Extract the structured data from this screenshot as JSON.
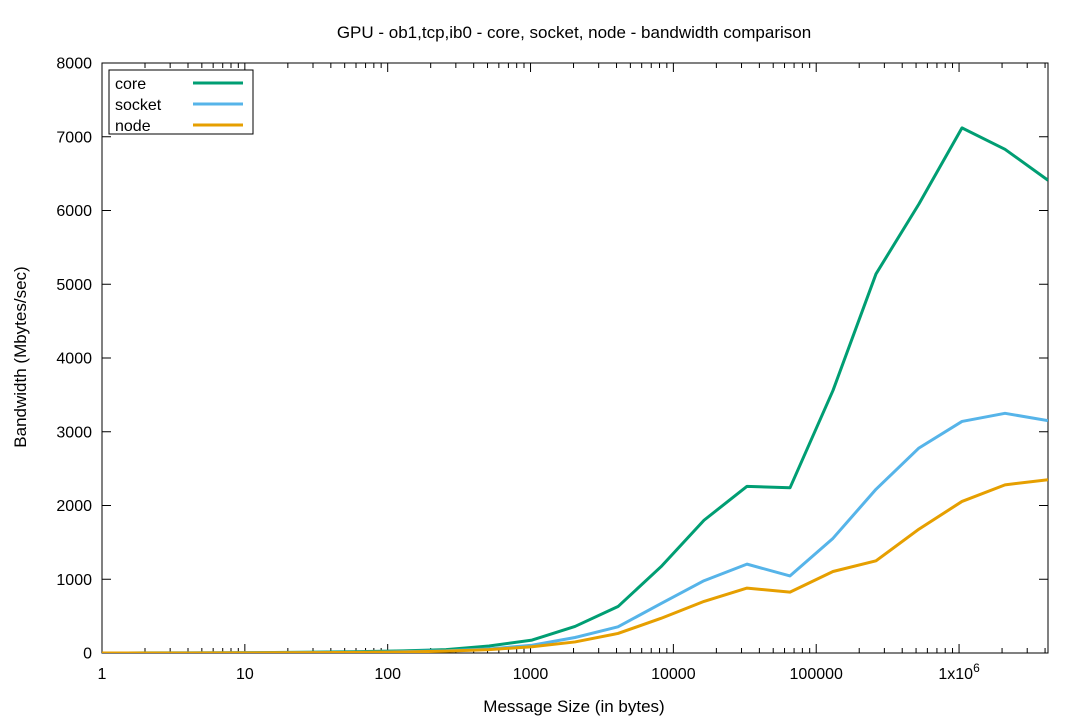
{
  "chart_data": {
    "type": "line",
    "title": "GPU - ob1,tcp,ib0 - core, socket, node - bandwidth comparison",
    "xlabel": "Message Size (in bytes)",
    "ylabel": "Bandwidth (Mbytes/sec)",
    "x_scale": "log",
    "xlim": [
      1,
      4194304
    ],
    "ylim": [
      0,
      8000
    ],
    "x_ticks": [
      {
        "value": 1,
        "label": "1"
      },
      {
        "value": 10,
        "label": "10"
      },
      {
        "value": 100,
        "label": "100"
      },
      {
        "value": 1000,
        "label": "1000"
      },
      {
        "value": 10000,
        "label": "10000"
      },
      {
        "value": 100000,
        "label": "100000"
      },
      {
        "value": 1000000,
        "label": "1x10",
        "sup": "6"
      }
    ],
    "y_ticks": [
      0,
      1000,
      2000,
      3000,
      4000,
      5000,
      6000,
      7000,
      8000
    ],
    "grid": false,
    "legend_position": "top-left",
    "x": [
      1,
      2,
      4,
      8,
      16,
      32,
      64,
      128,
      256,
      512,
      1024,
      2048,
      4096,
      8192,
      16384,
      32768,
      65536,
      131072,
      262144,
      524288,
      1048576,
      2097152,
      4194304
    ],
    "series": [
      {
        "name": "core",
        "color": "#009e73",
        "values": [
          0.5,
          1,
          2,
          4,
          7,
          12,
          18,
          28,
          45,
          95,
          175,
          360,
          630,
          1170,
          1800,
          2260,
          2240,
          3560,
          5140,
          6090,
          7120,
          6830,
          6410
        ]
      },
      {
        "name": "socket",
        "color": "#56b4e9",
        "values": [
          0.3,
          0.6,
          1,
          2,
          4,
          6,
          10,
          18,
          30,
          55,
          105,
          210,
          355,
          670,
          980,
          1205,
          1045,
          1555,
          2220,
          2780,
          3140,
          3250,
          3150
        ]
      },
      {
        "name": "node",
        "color": "#e69f00",
        "values": [
          0.2,
          0.4,
          0.8,
          1.5,
          3,
          5,
          8,
          14,
          25,
          45,
          85,
          150,
          265,
          470,
          700,
          880,
          825,
          1105,
          1250,
          1680,
          2055,
          2280,
          2350
        ]
      }
    ]
  }
}
